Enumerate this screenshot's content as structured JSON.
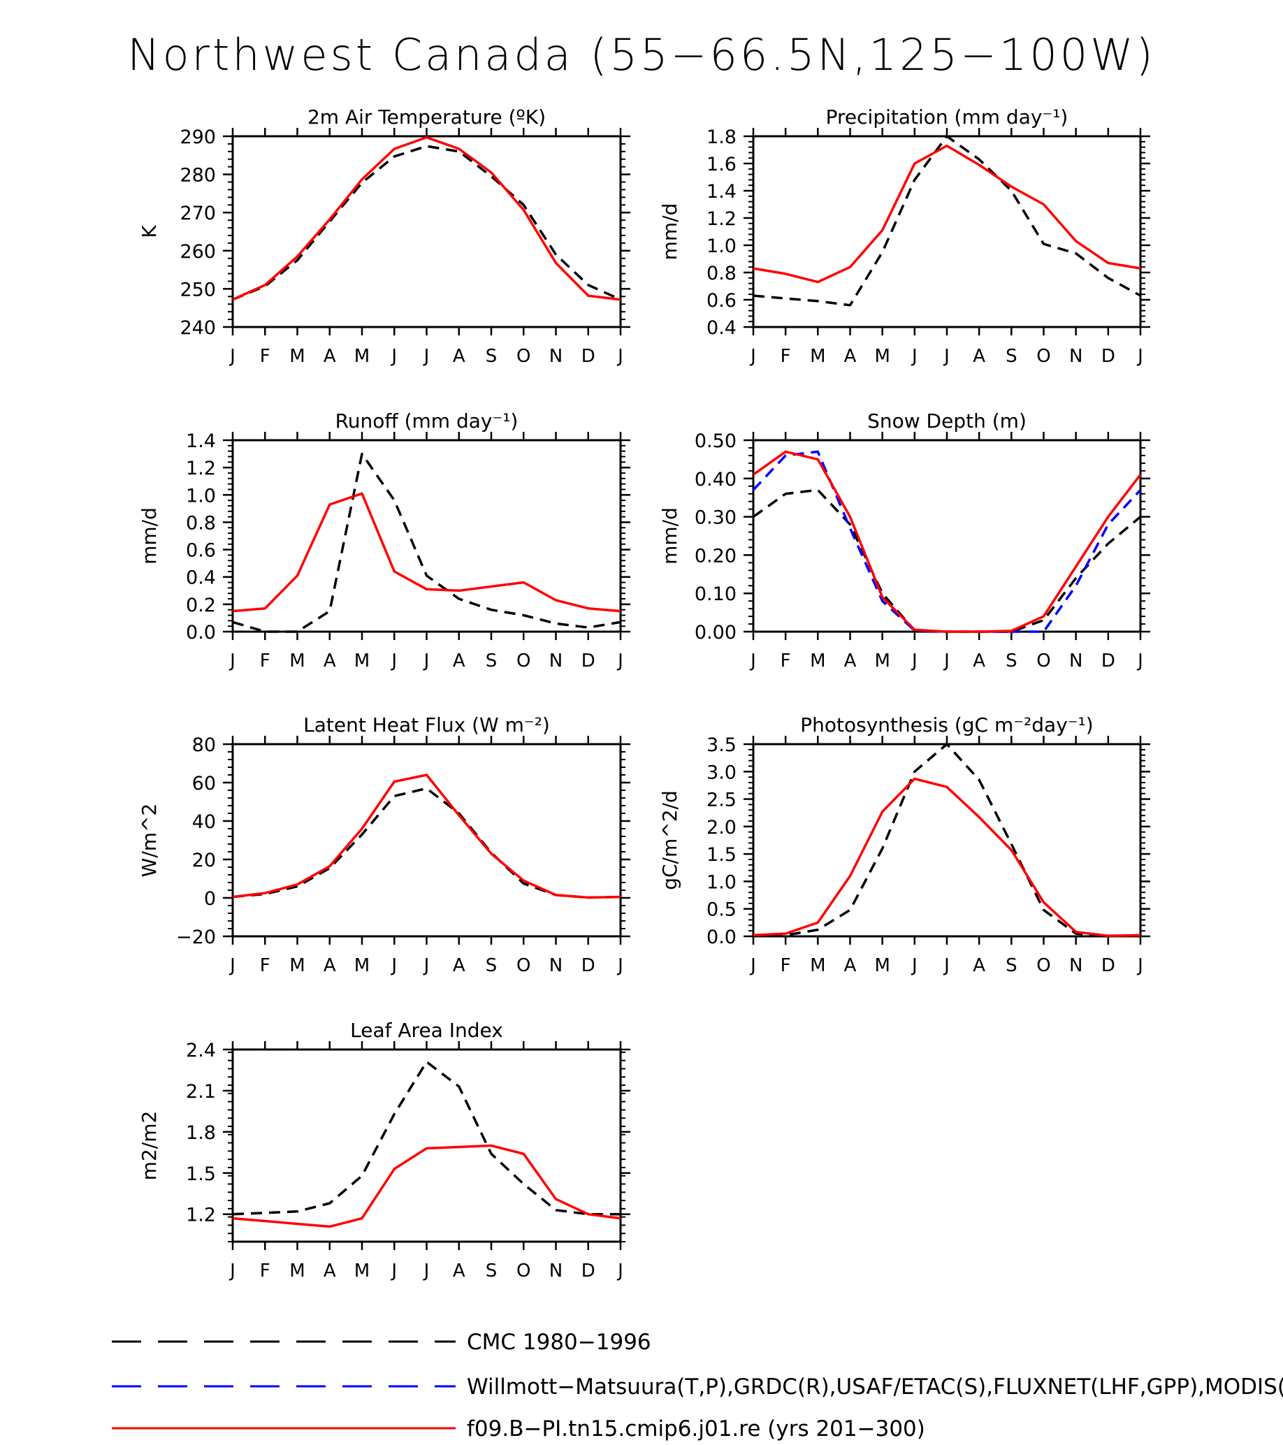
{
  "page_title": "Northwest Canada (55−66.5N,125−100W)",
  "months": [
    "J",
    "F",
    "M",
    "A",
    "M",
    "J",
    "J",
    "A",
    "S",
    "O",
    "N",
    "D",
    "J"
  ],
  "legend": [
    {
      "label": "CMC 1980−1996",
      "color": "#000000",
      "style": "dashed"
    },
    {
      "label": "Willmott−Matsuura(T,P),GRDC(R),USAF/ETAC(S),FLUXNET(LHF,GPP),MODIS(LAI)",
      "color": "#0000ff",
      "style": "dashed"
    },
    {
      "label": "f09.B−PI.tn15.cmip6.j01.re (yrs 201−300)",
      "color": "#ff0000",
      "style": "solid"
    }
  ],
  "chart_data": [
    {
      "type": "line",
      "title": "2m Air Temperature (ºK)",
      "ylabel": "K",
      "ylim": [
        240,
        290
      ],
      "yticks": [
        "240",
        "250",
        "260",
        "270",
        "280",
        "290"
      ],
      "ytick_values": [
        240,
        250,
        260,
        270,
        280,
        290
      ],
      "series": [
        {
          "color": "#000000",
          "style": "dashed",
          "values": [
            247.2,
            250.7,
            257.5,
            267.7,
            277.8,
            284.7,
            287.4,
            286.0,
            279.5,
            272.0,
            259.0,
            251.0,
            247.2
          ]
        },
        {
          "color": "#ff0000",
          "style": "solid",
          "values": [
            247.2,
            251.0,
            258.5,
            268.2,
            278.7,
            286.7,
            289.7,
            286.7,
            280.5,
            270.7,
            256.8,
            248.2,
            247.2
          ]
        }
      ]
    },
    {
      "type": "line",
      "title": "Precipitation (mm day⁻¹)",
      "ylabel": "mm/d",
      "ylim": [
        0.4,
        1.8
      ],
      "yticks": [
        "0.4",
        "0.6",
        "0.8",
        "1.0",
        "1.2",
        "1.4",
        "1.6",
        "1.8"
      ],
      "ytick_values": [
        0.4,
        0.6,
        0.8,
        1.0,
        1.2,
        1.4,
        1.6,
        1.8
      ],
      "series": [
        {
          "color": "#000000",
          "style": "dashed",
          "values": [
            0.63,
            0.61,
            0.59,
            0.56,
            0.95,
            1.48,
            1.8,
            1.63,
            1.4,
            1.01,
            0.94,
            0.76,
            0.63
          ]
        },
        {
          "color": "#ff0000",
          "style": "solid",
          "values": [
            0.83,
            0.79,
            0.73,
            0.84,
            1.11,
            1.6,
            1.73,
            1.59,
            1.43,
            1.3,
            1.03,
            0.87,
            0.83
          ]
        }
      ]
    },
    {
      "type": "line",
      "title": "Runoff (mm day⁻¹)",
      "ylabel": "mm/d",
      "ylim": [
        0.0,
        1.4
      ],
      "yticks": [
        "0.0",
        "0.2",
        "0.4",
        "0.6",
        "0.8",
        "1.0",
        "1.2",
        "1.4"
      ],
      "ytick_values": [
        0.0,
        0.2,
        0.4,
        0.6,
        0.8,
        1.0,
        1.2,
        1.4
      ],
      "series": [
        {
          "color": "#000000",
          "style": "dashed",
          "values": [
            0.07,
            0.0,
            0.0,
            0.15,
            1.3,
            0.96,
            0.41,
            0.24,
            0.16,
            0.12,
            0.06,
            0.03,
            0.07
          ]
        },
        {
          "color": "#ff0000",
          "style": "solid",
          "values": [
            0.15,
            0.17,
            0.41,
            0.93,
            1.01,
            0.44,
            0.31,
            0.3,
            0.33,
            0.36,
            0.23,
            0.17,
            0.15
          ]
        }
      ]
    },
    {
      "type": "line",
      "title": "Snow Depth (m)",
      "ylabel": "mm/d",
      "ylim": [
        0.0,
        0.5
      ],
      "yticks": [
        "0.00",
        "0.10",
        "0.20",
        "0.30",
        "0.40",
        "0.50"
      ],
      "ytick_values": [
        0.0,
        0.1,
        0.2,
        0.3,
        0.4,
        0.5
      ],
      "series": [
        {
          "color": "#000000",
          "style": "dashed",
          "values": [
            0.3,
            0.36,
            0.37,
            0.28,
            0.1,
            0.003,
            0.0,
            0.0,
            0.0,
            0.03,
            0.14,
            0.23,
            0.3
          ]
        },
        {
          "color": "#0000ff",
          "style": "dashed",
          "values": [
            0.37,
            0.46,
            0.47,
            0.27,
            0.08,
            0.003,
            0.0,
            0.0,
            0.0,
            0.0,
            0.12,
            0.28,
            0.37
          ]
        },
        {
          "color": "#ff0000",
          "style": "solid",
          "values": [
            0.41,
            0.47,
            0.45,
            0.3,
            0.09,
            0.005,
            0.0,
            0.0,
            0.002,
            0.04,
            0.17,
            0.3,
            0.41
          ]
        }
      ]
    },
    {
      "type": "line",
      "title": "Latent Heat Flux (W m⁻²)",
      "ylabel": "W/m^2",
      "ylim": [
        -20,
        80
      ],
      "yticks": [
        "−20",
        "0",
        "20",
        "40",
        "60",
        "80"
      ],
      "ytick_values": [
        -20,
        0,
        20,
        40,
        60,
        80
      ],
      "series": [
        {
          "color": "#000000",
          "style": "dashed",
          "values": [
            0.5,
            2.0,
            6.0,
            15.5,
            33.0,
            53.0,
            57.0,
            44.0,
            23.5,
            7.5,
            1.5,
            0.2,
            0.5
          ]
        },
        {
          "color": "#ff0000",
          "style": "solid",
          "values": [
            0.5,
            2.5,
            7.0,
            16.5,
            36.0,
            60.5,
            64.0,
            43.0,
            23.0,
            9.0,
            1.5,
            0.2,
            0.5
          ]
        }
      ]
    },
    {
      "type": "line",
      "title": "Photosynthesis (gC m⁻²day⁻¹)",
      "ylabel": "gC/m^2/d",
      "ylim": [
        0.0,
        3.5
      ],
      "yticks": [
        "0.0",
        "0.5",
        "1.0",
        "1.5",
        "2.0",
        "2.5",
        "3.0",
        "3.5"
      ],
      "ytick_values": [
        0.0,
        0.5,
        1.0,
        1.5,
        2.0,
        2.5,
        3.0,
        3.5
      ],
      "series": [
        {
          "color": "#000000",
          "style": "dashed",
          "values": [
            0.01,
            0.02,
            0.12,
            0.48,
            1.6,
            3.0,
            3.5,
            2.85,
            1.68,
            0.48,
            0.05,
            0.01,
            0.01
          ]
        },
        {
          "color": "#ff0000",
          "style": "solid",
          "values": [
            0.02,
            0.05,
            0.25,
            1.1,
            2.27,
            2.87,
            2.72,
            2.17,
            1.57,
            0.62,
            0.08,
            0.01,
            0.02
          ]
        }
      ]
    },
    {
      "type": "line",
      "title": "Leaf Area Index",
      "ylabel": "m2/m2",
      "ylim": [
        1.0,
        2.4
      ],
      "yticks": [
        "1.2",
        "1.5",
        "1.8",
        "2.1",
        "2.4"
      ],
      "ytick_values": [
        1.2,
        1.5,
        1.8,
        2.1,
        2.4
      ],
      "series": [
        {
          "color": "#000000",
          "style": "dashed",
          "values": [
            1.2,
            1.21,
            1.22,
            1.28,
            1.48,
            1.93,
            2.31,
            2.13,
            1.64,
            1.42,
            1.23,
            1.2,
            1.2
          ]
        },
        {
          "color": "#ff0000",
          "style": "solid",
          "values": [
            1.17,
            1.15,
            1.13,
            1.11,
            1.17,
            1.53,
            1.68,
            1.69,
            1.7,
            1.64,
            1.31,
            1.2,
            1.17
          ]
        }
      ]
    }
  ]
}
